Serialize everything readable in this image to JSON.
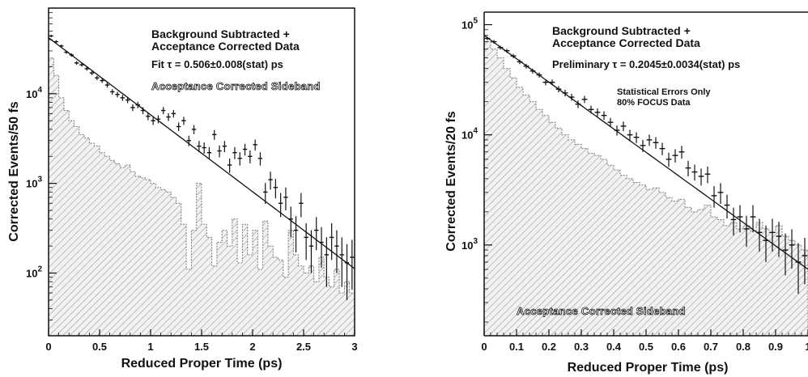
{
  "chart_data": [
    {
      "type": "scatter",
      "log_y": true,
      "xlabel": "Reduced Proper Time (ps)",
      "ylabel": "Corrected Events/50 fs",
      "xlim": [
        0,
        3
      ],
      "ylim": [
        20,
        90000
      ],
      "x_ticks": [
        {
          "value": 0,
          "label": "0"
        },
        {
          "value": 0.5,
          "label": "0.5"
        },
        {
          "value": 1,
          "label": "1"
        },
        {
          "value": 1.5,
          "label": "1.5"
        },
        {
          "value": 2,
          "label": "2"
        },
        {
          "value": 2.5,
          "label": "2.5"
        },
        {
          "value": 3,
          "label": "3"
        }
      ],
      "y_ticks": [
        {
          "value": 100,
          "base": "10",
          "exp": "2"
        },
        {
          "value": 1000,
          "base": "10",
          "exp": "3"
        },
        {
          "value": 10000,
          "base": "10",
          "exp": "4"
        }
      ],
      "annotations": {
        "title_line1": "Background Subtracted +",
        "title_line2": "Acceptance Corrected Data",
        "fit_text": "Fit τ = 0.506±0.008(stat) ps",
        "band_label": "Acceptance Corrected Sideband",
        "stats_line1": "",
        "stats_line2": ""
      },
      "fit": {
        "amplitude": 42000,
        "tau": 0.506,
        "x_range": [
          0,
          3
        ]
      },
      "series": [
        {
          "role": "data",
          "x": [
            0.025,
            0.075,
            0.125,
            0.175,
            0.225,
            0.275,
            0.325,
            0.375,
            0.425,
            0.475,
            0.525,
            0.575,
            0.625,
            0.675,
            0.725,
            0.775,
            0.825,
            0.875,
            0.925,
            0.975,
            1.025,
            1.075,
            1.125,
            1.175,
            1.225,
            1.275,
            1.325,
            1.375,
            1.425,
            1.475,
            1.525,
            1.575,
            1.625,
            1.675,
            1.725,
            1.775,
            1.825,
            1.875,
            1.925,
            1.975,
            2.025,
            2.075,
            2.125,
            2.175,
            2.225,
            2.275,
            2.325,
            2.375,
            2.425,
            2.475,
            2.525,
            2.575,
            2.625,
            2.675,
            2.725,
            2.775,
            2.825,
            2.875,
            2.925,
            2.975
          ],
          "y": [
            44000,
            38000,
            34000,
            29000,
            27000,
            22000,
            21000,
            19000,
            17000,
            15000,
            14000,
            12500,
            10500,
            9800,
            9000,
            8500,
            7000,
            7500,
            6500,
            5600,
            5000,
            5200,
            6500,
            5500,
            6000,
            4300,
            5000,
            3000,
            4000,
            2600,
            2500,
            2200,
            3500,
            2300,
            2600,
            1600,
            2200,
            1900,
            2400,
            2000,
            2700,
            1900,
            800,
            1100,
            900,
            600,
            700,
            400,
            300,
            600,
            250,
            200,
            300,
            220,
            160,
            250,
            200,
            160,
            130,
            150
          ],
          "yerr": [
            1500,
            1400,
            1300,
            1200,
            1150,
            1050,
            1000,
            950,
            900,
            850,
            820,
            780,
            720,
            700,
            680,
            660,
            600,
            620,
            580,
            540,
            520,
            530,
            600,
            550,
            570,
            480,
            520,
            400,
            460,
            370,
            360,
            340,
            440,
            350,
            370,
            290,
            340,
            320,
            360,
            330,
            380,
            320,
            210,
            250,
            220,
            180,
            200,
            150,
            130,
            180,
            110,
            100,
            120,
            105,
            90,
            110,
            100,
            90,
            80,
            85
          ]
        },
        {
          "role": "sideband",
          "x": [
            0,
            0.05,
            0.1,
            0.15,
            0.2,
            0.25,
            0.3,
            0.35,
            0.4,
            0.45,
            0.5,
            0.55,
            0.6,
            0.65,
            0.7,
            0.75,
            0.8,
            0.85,
            0.9,
            0.95,
            1,
            1.05,
            1.1,
            1.15,
            1.2,
            1.25,
            1.3,
            1.35,
            1.4,
            1.45,
            1.5,
            1.55,
            1.6,
            1.65,
            1.7,
            1.75,
            1.8,
            1.85,
            1.9,
            1.95,
            2,
            2.05,
            2.1,
            2.15,
            2.2,
            2.25,
            2.3,
            2.35,
            2.4,
            2.45,
            2.5,
            2.55,
            2.6,
            2.65,
            2.7,
            2.75,
            2.8,
            2.85,
            2.9,
            2.95
          ],
          "y": [
            25000,
            16000,
            9000,
            6500,
            5000,
            4300,
            3500,
            3200,
            2800,
            2600,
            2200,
            2000,
            1800,
            1650,
            1500,
            1600,
            1350,
            1200,
            1150,
            1100,
            1000,
            900,
            850,
            800,
            700,
            600,
            350,
            110,
            300,
            1000,
            350,
            250,
            120,
            220,
            300,
            200,
            400,
            130,
            350,
            160,
            300,
            110,
            380,
            200,
            150,
            140,
            90,
            300,
            160,
            120,
            100,
            120,
            80,
            150,
            90,
            70,
            110,
            60,
            80,
            60
          ]
        }
      ]
    },
    {
      "type": "scatter",
      "log_y": true,
      "xlabel": "Reduced Proper Time (ps)",
      "ylabel": "Corrected Events/20 fs",
      "xlim": [
        0,
        1.0
      ],
      "ylim": [
        150,
        130000
      ],
      "x_ticks": [
        {
          "value": 0,
          "label": "0"
        },
        {
          "value": 0.1,
          "label": "0.1"
        },
        {
          "value": 0.2,
          "label": "0.2"
        },
        {
          "value": 0.3,
          "label": "0.3"
        },
        {
          "value": 0.4,
          "label": "0.4"
        },
        {
          "value": 0.5,
          "label": "0.5"
        },
        {
          "value": 0.6,
          "label": "0.6"
        },
        {
          "value": 0.7,
          "label": "0.7"
        },
        {
          "value": 0.8,
          "label": "0.8"
        },
        {
          "value": 0.9,
          "label": "0.9"
        },
        {
          "value": 1.0,
          "label": "1"
        }
      ],
      "y_ticks": [
        {
          "value": 1000,
          "base": "10",
          "exp": "3"
        },
        {
          "value": 10000,
          "base": "10",
          "exp": "4"
        },
        {
          "value": 100000,
          "base": "10",
          "exp": "5"
        }
      ],
      "annotations": {
        "title_line1": "Background Subtracted +",
        "title_line2": "Acceptance Corrected Data",
        "fit_text": "Preliminary τ = 0.2045±0.0034(stat) ps",
        "band_label": "Acceptance Corrected Sideband",
        "stats_line1": "Statistical Errors Only",
        "stats_line2": "80% FOCUS Data"
      },
      "fit": {
        "amplitude": 80000,
        "tau": 0.2045,
        "x_range": [
          0,
          1.0
        ]
      },
      "series": [
        {
          "role": "data",
          "x": [
            0.01,
            0.03,
            0.05,
            0.07,
            0.09,
            0.11,
            0.13,
            0.15,
            0.17,
            0.19,
            0.21,
            0.23,
            0.25,
            0.27,
            0.29,
            0.31,
            0.33,
            0.35,
            0.37,
            0.39,
            0.41,
            0.43,
            0.45,
            0.47,
            0.49,
            0.51,
            0.53,
            0.55,
            0.57,
            0.59,
            0.61,
            0.63,
            0.65,
            0.67,
            0.69,
            0.71,
            0.73,
            0.75,
            0.77,
            0.79,
            0.81,
            0.83,
            0.85,
            0.87,
            0.89,
            0.91,
            0.93,
            0.95,
            0.97,
            0.99
          ],
          "y": [
            75000,
            70000,
            62000,
            58000,
            52000,
            46000,
            42000,
            38000,
            35000,
            30000,
            30000,
            26000,
            24000,
            22000,
            19000,
            21000,
            17000,
            16000,
            15000,
            13000,
            11000,
            12000,
            10000,
            9500,
            8000,
            9000,
            8500,
            7500,
            6000,
            6500,
            7000,
            5000,
            4600,
            4200,
            4400,
            2800,
            3000,
            2300,
            1700,
            1800,
            1400,
            1800,
            1300,
            1100,
            1300,
            1200,
            900,
            1000,
            700,
            800
          ],
          "yerr": [
            2800,
            2700,
            2500,
            2400,
            2300,
            2200,
            2100,
            2000,
            1900,
            1800,
            1800,
            1700,
            1650,
            1600,
            1500,
            1550,
            1400,
            1380,
            1350,
            1250,
            1150,
            1200,
            1100,
            1080,
            1000,
            1050,
            1020,
            960,
            880,
            900,
            930,
            800,
            760,
            740,
            760,
            620,
            640,
            560,
            480,
            500,
            440,
            500,
            430,
            400,
            430,
            420,
            370,
            390,
            340,
            360
          ]
        },
        {
          "role": "sideband",
          "x": [
            0,
            0.02,
            0.04,
            0.06,
            0.08,
            0.1,
            0.12,
            0.14,
            0.16,
            0.18,
            0.2,
            0.22,
            0.24,
            0.26,
            0.28,
            0.3,
            0.32,
            0.34,
            0.36,
            0.38,
            0.4,
            0.42,
            0.44,
            0.46,
            0.48,
            0.5,
            0.52,
            0.54,
            0.56,
            0.58,
            0.6,
            0.62,
            0.64,
            0.66,
            0.68,
            0.7,
            0.72,
            0.74,
            0.76,
            0.78,
            0.8,
            0.82,
            0.84,
            0.86,
            0.88,
            0.9,
            0.92,
            0.94,
            0.96,
            0.98
          ],
          "y": [
            70000,
            60000,
            50000,
            40000,
            33000,
            27000,
            23000,
            20000,
            17000,
            15000,
            13000,
            11500,
            10000,
            9000,
            8200,
            7500,
            6800,
            6500,
            6000,
            5300,
            4800,
            4300,
            4000,
            3700,
            3500,
            3200,
            3300,
            3000,
            2700,
            2500,
            2600,
            2200,
            2000,
            2100,
            2300,
            1800,
            1700,
            1500,
            1600,
            1400,
            1500,
            1350,
            1600,
            1400,
            1300,
            1500,
            1200,
            1100,
            1000,
            900
          ]
        }
      ]
    }
  ]
}
